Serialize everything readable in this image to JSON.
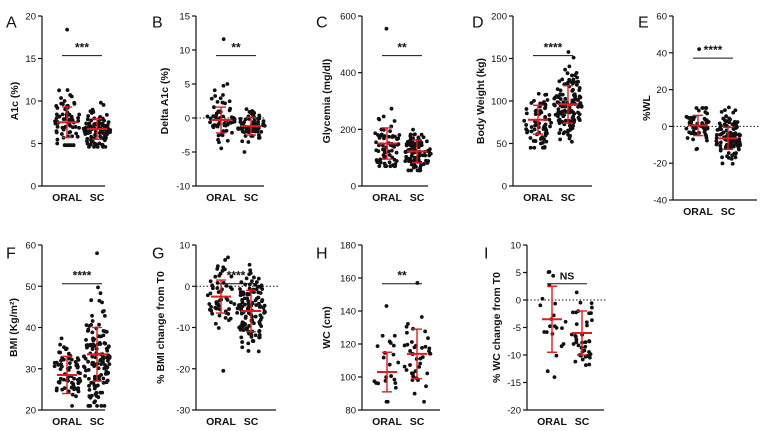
{
  "figure": {
    "colors": {
      "points": "#111111",
      "summary": "#e8191c",
      "axis": "#111111",
      "background": "#ffffff"
    }
  },
  "chart_data": [
    {
      "panel": "A",
      "type": "scatter",
      "ylabel": "A1c (%)",
      "ylim": [
        0,
        20
      ],
      "yticks": [
        0,
        5,
        10,
        15,
        20
      ],
      "categories": [
        "ORAL",
        "SC"
      ],
      "significance": "***",
      "zero_reference_line": false,
      "groups": [
        {
          "name": "ORAL",
          "n": 70,
          "mean": 7.5,
          "sd": 1.8,
          "lo": 4.8,
          "hi": 11.8,
          "outliers": [
            18.4
          ]
        },
        {
          "name": "SC",
          "n": 100,
          "mean": 6.7,
          "sd": 1.2,
          "lo": 4.6,
          "hi": 9.8,
          "outliers": []
        }
      ]
    },
    {
      "panel": "B",
      "type": "scatter",
      "ylabel": "Delta A1c (%)",
      "ylim": [
        -10,
        15
      ],
      "yticks": [
        -10,
        -5,
        0,
        5,
        10,
        15
      ],
      "categories": [
        "ORAL",
        "SC"
      ],
      "significance": "**",
      "zero_reference_line": true,
      "groups": [
        {
          "name": "ORAL",
          "n": 60,
          "mean": -0.3,
          "sd": 1.9,
          "lo": -7.2,
          "hi": 5.0,
          "outliers": [
            11.6
          ]
        },
        {
          "name": "SC",
          "n": 75,
          "mean": -1.2,
          "sd": 1.3,
          "lo": -5.0,
          "hi": 1.3,
          "outliers": []
        }
      ]
    },
    {
      "panel": "C",
      "type": "scatter",
      "ylabel": "Glycemia (mg/dl)",
      "ylim": [
        0,
        600
      ],
      "yticks": [
        0,
        200,
        400,
        600
      ],
      "categories": [
        "ORAL",
        "SC"
      ],
      "significance": "**",
      "zero_reference_line": false,
      "groups": [
        {
          "name": "ORAL",
          "n": 70,
          "mean": 150,
          "sd": 55,
          "lo": 70,
          "hi": 300,
          "outliers": [
            555
          ]
        },
        {
          "name": "SC",
          "n": 100,
          "mean": 122,
          "sd": 40,
          "lo": 55,
          "hi": 265,
          "outliers": []
        }
      ]
    },
    {
      "panel": "D",
      "type": "scatter",
      "ylabel": "Body Weight (kg)",
      "ylim": [
        0,
        200
      ],
      "yticks": [
        0,
        50,
        100,
        150,
        200
      ],
      "categories": [
        "ORAL",
        "SC"
      ],
      "significance": "****",
      "zero_reference_line": false,
      "groups": [
        {
          "name": "ORAL",
          "n": 70,
          "mean": 78,
          "sd": 17,
          "lo": 45,
          "hi": 122,
          "outliers": []
        },
        {
          "name": "SC",
          "n": 130,
          "mean": 96,
          "sd": 22,
          "lo": 52,
          "hi": 158,
          "outliers": []
        }
      ]
    },
    {
      "panel": "E",
      "type": "scatter",
      "ylabel": "%WL",
      "ylim": [
        -40,
        60
      ],
      "yticks": [
        -40,
        -20,
        0,
        20,
        40,
        60
      ],
      "categories": [
        "ORAL",
        "SC"
      ],
      "significance": "****",
      "zero_reference_line": true,
      "groups": [
        {
          "name": "ORAL",
          "n": 55,
          "mean": 0.5,
          "sd": 5.5,
          "lo": -20,
          "hi": 10,
          "outliers": [
            42
          ]
        },
        {
          "name": "SC",
          "n": 110,
          "mean": -6.5,
          "sd": 6,
          "lo": -25,
          "hi": 12,
          "outliers": []
        }
      ]
    },
    {
      "panel": "F",
      "type": "scatter",
      "ylabel": "BMI (Kg/m²)",
      "ylim": [
        20,
        60
      ],
      "yticks": [
        20,
        30,
        40,
        50,
        60
      ],
      "categories": [
        "ORAL",
        "SC"
      ],
      "significance": "****",
      "zero_reference_line": false,
      "groups": [
        {
          "name": "ORAL",
          "n": 70,
          "mean": 28.5,
          "sd": 4.5,
          "lo": 21,
          "hi": 41,
          "outliers": []
        },
        {
          "name": "SC",
          "n": 130,
          "mean": 33.5,
          "sd": 6.5,
          "lo": 21,
          "hi": 53,
          "outliers": [
            58
          ]
        }
      ]
    },
    {
      "panel": "G",
      "type": "scatter",
      "ylabel": "% BMI change from T0",
      "ylim": [
        -30,
        10
      ],
      "yticks": [
        -30,
        -20,
        -10,
        0,
        10
      ],
      "categories": [
        "ORAL",
        "SC"
      ],
      "significance": "****",
      "zero_reference_line": true,
      "groups": [
        {
          "name": "ORAL",
          "n": 55,
          "mean": -2.5,
          "sd": 4,
          "lo": -13,
          "hi": 7,
          "outliers": [
            -20.5
          ]
        },
        {
          "name": "SC",
          "n": 130,
          "mean": -6,
          "sd": 5,
          "lo": -25,
          "hi": 6,
          "outliers": []
        }
      ]
    },
    {
      "panel": "H",
      "type": "scatter",
      "ylabel": "WC (cm)",
      "ylim": [
        80,
        180
      ],
      "yticks": [
        80,
        100,
        120,
        140,
        160,
        180
      ],
      "categories": [
        "ORAL",
        "SC"
      ],
      "significance": "**",
      "zero_reference_line": false,
      "groups": [
        {
          "name": "ORAL",
          "n": 22,
          "mean": 103,
          "sd": 12,
          "lo": 85,
          "hi": 125,
          "outliers": [
            143
          ]
        },
        {
          "name": "SC",
          "n": 40,
          "mean": 114,
          "sd": 15,
          "lo": 85,
          "hi": 150,
          "outliers": [
            157
          ]
        }
      ]
    },
    {
      "panel": "I",
      "type": "scatter",
      "ylabel": "% WC change from T0",
      "ylim": [
        -20,
        10
      ],
      "yticks": [
        -20,
        -15,
        -10,
        -5,
        0,
        5,
        10
      ],
      "categories": [
        "ORAL",
        "SC"
      ],
      "significance": "NS",
      "zero_reference_line": true,
      "groups": [
        {
          "name": "ORAL",
          "n": 22,
          "mean": -3.5,
          "sd": 6,
          "lo": -14.5,
          "hi": 8,
          "outliers": []
        },
        {
          "name": "SC",
          "n": 40,
          "mean": -6,
          "sd": 4,
          "lo": -15,
          "hi": 1.5,
          "outliers": []
        }
      ]
    }
  ]
}
